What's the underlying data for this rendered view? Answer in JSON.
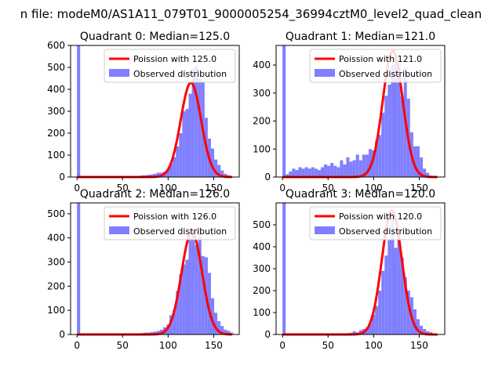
{
  "suptitle": "n file: modeM0/AS1A11_079T01_9000005254_36994cztM0_level2_quad_clean",
  "colors": {
    "hist": "#8080ff",
    "poisson": "#ff0000",
    "axis": "#000000",
    "legend_border": "#cccccc"
  },
  "chart_data": [
    {
      "type": "bar",
      "title": "Quadrant 0: Median=125.0",
      "xlim": [
        -7,
        178
      ],
      "ylim": [
        0,
        600
      ],
      "xticks": [
        0,
        50,
        100,
        150
      ],
      "yticks": [
        0,
        100,
        200,
        300,
        400,
        500,
        600
      ],
      "legend_position": "top-right",
      "legend": [
        "Poission with 125.0",
        "Observed distribution"
      ],
      "poisson_mean": 125.0,
      "poisson_peak": 430,
      "bin_width": 3.5,
      "histogram": [
        [
          0,
          600
        ],
        [
          3.5,
          5
        ],
        [
          7,
          4
        ],
        [
          10.5,
          4
        ],
        [
          14,
          3
        ],
        [
          17.5,
          3
        ],
        [
          21,
          3
        ],
        [
          24.5,
          4
        ],
        [
          28,
          3
        ],
        [
          31.5,
          3
        ],
        [
          35,
          4
        ],
        [
          38.5,
          3
        ],
        [
          42,
          3
        ],
        [
          45.5,
          3
        ],
        [
          49,
          3
        ],
        [
          52.5,
          4
        ],
        [
          56,
          3
        ],
        [
          59.5,
          3
        ],
        [
          63,
          3
        ],
        [
          66.5,
          4
        ],
        [
          70,
          8
        ],
        [
          73.5,
          8
        ],
        [
          77,
          10
        ],
        [
          80.5,
          12
        ],
        [
          84,
          15
        ],
        [
          87.5,
          20
        ],
        [
          91,
          20
        ],
        [
          94.5,
          25
        ],
        [
          98,
          35
        ],
        [
          101.5,
          60
        ],
        [
          105,
          90
        ],
        [
          108.5,
          140
        ],
        [
          112,
          200
        ],
        [
          115.5,
          300
        ],
        [
          119,
          310
        ],
        [
          122.5,
          380
        ],
        [
          126,
          495
        ],
        [
          129.5,
          510
        ],
        [
          133,
          450
        ],
        [
          136.5,
          435
        ],
        [
          140,
          270
        ],
        [
          143.5,
          175
        ],
        [
          147,
          130
        ],
        [
          150.5,
          80
        ],
        [
          154,
          55
        ],
        [
          157.5,
          30
        ],
        [
          161,
          15
        ],
        [
          164.5,
          8
        ]
      ]
    },
    {
      "type": "bar",
      "title": "Quadrant 1: Median=121.0",
      "xlim": [
        -7,
        178
      ],
      "ylim": [
        0,
        470
      ],
      "xticks": [
        0,
        50,
        100,
        150
      ],
      "yticks": [
        0,
        100,
        200,
        300,
        400
      ],
      "legend_position": "top-right",
      "legend": [
        "Poission with 121.0",
        "Observed distribution"
      ],
      "poisson_mean": 121.0,
      "poisson_peak": 450,
      "bin_width": 3.5,
      "histogram": [
        [
          0,
          470
        ],
        [
          3.5,
          10
        ],
        [
          7,
          20
        ],
        [
          10.5,
          30
        ],
        [
          14,
          25
        ],
        [
          17.5,
          35
        ],
        [
          21,
          30
        ],
        [
          24.5,
          35
        ],
        [
          28,
          30
        ],
        [
          31.5,
          35
        ],
        [
          35,
          30
        ],
        [
          38.5,
          25
        ],
        [
          42,
          35
        ],
        [
          45.5,
          45
        ],
        [
          49,
          40
        ],
        [
          52.5,
          50
        ],
        [
          56,
          40
        ],
        [
          59.5,
          35
        ],
        [
          63,
          60
        ],
        [
          66.5,
          45
        ],
        [
          70,
          70
        ],
        [
          73.5,
          55
        ],
        [
          77,
          60
        ],
        [
          80.5,
          80
        ],
        [
          84,
          60
        ],
        [
          87.5,
          80
        ],
        [
          91,
          80
        ],
        [
          94.5,
          100
        ],
        [
          98,
          95
        ],
        [
          101.5,
          130
        ],
        [
          105,
          150
        ],
        [
          108.5,
          230
        ],
        [
          112,
          290
        ],
        [
          115.5,
          330
        ],
        [
          119,
          400
        ],
        [
          122.5,
          430
        ],
        [
          126,
          405
        ],
        [
          129.5,
          290
        ],
        [
          133,
          390
        ],
        [
          136.5,
          280
        ],
        [
          140,
          160
        ],
        [
          143.5,
          110
        ],
        [
          147,
          110
        ],
        [
          150.5,
          70
        ],
        [
          154,
          30
        ],
        [
          157.5,
          15
        ],
        [
          161,
          5
        ]
      ]
    },
    {
      "type": "bar",
      "title": "Quadrant 2: Median=126.0",
      "xlim": [
        -7,
        178
      ],
      "ylim": [
        0,
        545
      ],
      "xticks": [
        0,
        50,
        100,
        150
      ],
      "yticks": [
        0,
        100,
        200,
        300,
        400,
        500
      ],
      "legend_position": "top-right",
      "legend": [
        "Poission with 126.0",
        "Observed distribution"
      ],
      "poisson_mean": 126.0,
      "poisson_peak": 425,
      "bin_width": 3.5,
      "histogram": [
        [
          0,
          545
        ],
        [
          3.5,
          3
        ],
        [
          7,
          3
        ],
        [
          10.5,
          3
        ],
        [
          14,
          3
        ],
        [
          17.5,
          3
        ],
        [
          21,
          3
        ],
        [
          24.5,
          3
        ],
        [
          28,
          3
        ],
        [
          31.5,
          3
        ],
        [
          35,
          3
        ],
        [
          38.5,
          3
        ],
        [
          42,
          3
        ],
        [
          45.5,
          3
        ],
        [
          49,
          3
        ],
        [
          52.5,
          3
        ],
        [
          56,
          3
        ],
        [
          59.5,
          4
        ],
        [
          63,
          4
        ],
        [
          66.5,
          4
        ],
        [
          70,
          6
        ],
        [
          73.5,
          8
        ],
        [
          77,
          8
        ],
        [
          80.5,
          10
        ],
        [
          84,
          12
        ],
        [
          87.5,
          15
        ],
        [
          91,
          20
        ],
        [
          94.5,
          30
        ],
        [
          98,
          40
        ],
        [
          101.5,
          80
        ],
        [
          105,
          100
        ],
        [
          108.5,
          180
        ],
        [
          112,
          250
        ],
        [
          115.5,
          290
        ],
        [
          119,
          310
        ],
        [
          122.5,
          400
        ],
        [
          126,
          420
        ],
        [
          129.5,
          370
        ],
        [
          133,
          445
        ],
        [
          136.5,
          325
        ],
        [
          140,
          320
        ],
        [
          143.5,
          255
        ],
        [
          147,
          150
        ],
        [
          150.5,
          90
        ],
        [
          154,
          55
        ],
        [
          157.5,
          35
        ],
        [
          161,
          20
        ],
        [
          164.5,
          15
        ],
        [
          168,
          8
        ]
      ]
    },
    {
      "type": "bar",
      "title": "Quadrant 3: Median=120.0",
      "xlim": [
        -7,
        178
      ],
      "ylim": [
        0,
        600
      ],
      "xticks": [
        0,
        50,
        100,
        150
      ],
      "yticks": [
        0,
        100,
        200,
        300,
        400,
        500
      ],
      "legend_position": "top-right",
      "legend": [
        "Poission with 120.0",
        "Observed distribution"
      ],
      "poisson_mean": 120.0,
      "poisson_peak": 565,
      "bin_width": 3.5,
      "histogram": [
        [
          0,
          600
        ],
        [
          3.5,
          3
        ],
        [
          7,
          3
        ],
        [
          10.5,
          3
        ],
        [
          14,
          3
        ],
        [
          17.5,
          3
        ],
        [
          21,
          3
        ],
        [
          24.5,
          3
        ],
        [
          28,
          3
        ],
        [
          31.5,
          3
        ],
        [
          35,
          3
        ],
        [
          38.5,
          3
        ],
        [
          42,
          3
        ],
        [
          45.5,
          3
        ],
        [
          49,
          3
        ],
        [
          52.5,
          3
        ],
        [
          56,
          3
        ],
        [
          59.5,
          3
        ],
        [
          63,
          4
        ],
        [
          66.5,
          5
        ],
        [
          70,
          6
        ],
        [
          73.5,
          8
        ],
        [
          77,
          15
        ],
        [
          80.5,
          10
        ],
        [
          84,
          20
        ],
        [
          87.5,
          25
        ],
        [
          91,
          30
        ],
        [
          94.5,
          50
        ],
        [
          98,
          90
        ],
        [
          101.5,
          130
        ],
        [
          105,
          200
        ],
        [
          108.5,
          290
        ],
        [
          112,
          360
        ],
        [
          115.5,
          430
        ],
        [
          119,
          560
        ],
        [
          122.5,
          395
        ],
        [
          126,
          430
        ],
        [
          129.5,
          350
        ],
        [
          133,
          260
        ],
        [
          136.5,
          200
        ],
        [
          140,
          170
        ],
        [
          143.5,
          115
        ],
        [
          147,
          70
        ],
        [
          150.5,
          40
        ],
        [
          154,
          25
        ],
        [
          157.5,
          15
        ],
        [
          161,
          10
        ],
        [
          164.5,
          5
        ]
      ]
    }
  ]
}
